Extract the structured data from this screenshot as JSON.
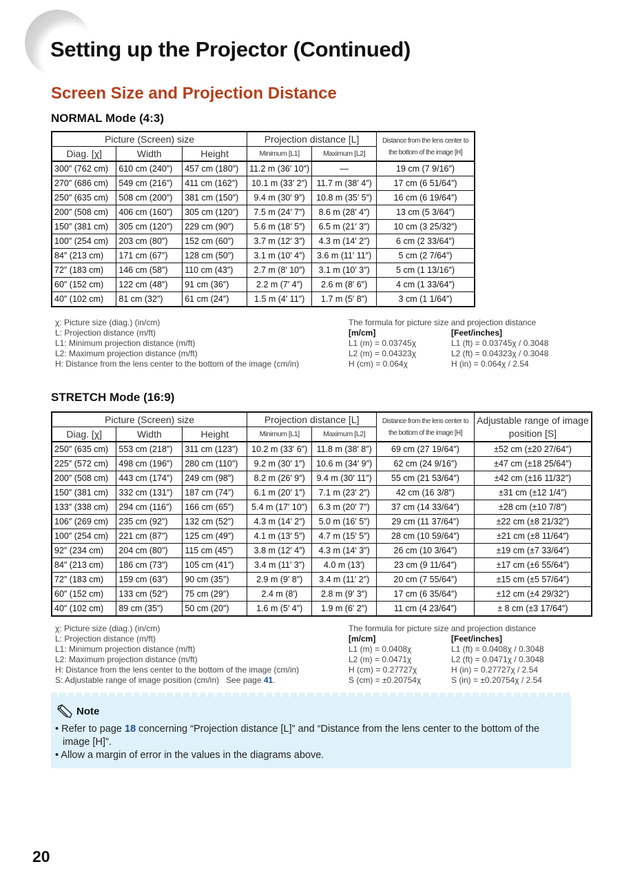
{
  "title": "Setting up the Projector (Continued)",
  "subtitle": "Screen Size and Projection Distance",
  "normal": {
    "heading": "NORMAL Mode (4:3)",
    "headers": {
      "group1": "Picture (Screen) size",
      "group2": "Projection distance [L]",
      "h": "Distance from the lens center to the bottom of the image [H]",
      "diag": "Diag. [χ]",
      "width": "Width",
      "height": "Height",
      "min": "Minimum [L1]",
      "max": "Maximum [L2]"
    },
    "rows": [
      [
        "300″ (762 cm)",
        "610 cm (240″)",
        "457 cm (180″)",
        "11.2 m (36′ 10″)",
        "—",
        "19 cm (7 9/16″)"
      ],
      [
        "270″ (686 cm)",
        "549 cm (216″)",
        "411 cm (162″)",
        "10.1 m (33′ 2″)",
        "11.7 m (38′ 4″)",
        "17 cm (6 51/64″)"
      ],
      [
        "250″ (635 cm)",
        "508 cm (200″)",
        "381 cm (150″)",
        "9.4 m (30′ 9″)",
        "10.8 m (35′ 5″)",
        "16 cm (6 19/64″)"
      ],
      [
        "200″ (508 cm)",
        "406 cm (160″)",
        "305 cm (120″)",
        "7.5 m (24′ 7″)",
        "8.6 m (28′ 4″)",
        "13 cm (5 3/64″)"
      ],
      [
        "150″ (381 cm)",
        "305 cm (120″)",
        "229 cm (90″)",
        "5.6 m (18′ 5″)",
        "6.5 m (21′ 3″)",
        "10 cm (3 25/32″)"
      ],
      [
        "100″ (254 cm)",
        "203 cm (80″)",
        "152 cm (60″)",
        "3.7 m (12′ 3″)",
        "4.3 m (14′ 2″)",
        "6 cm (2 33/64″)"
      ],
      [
        "84″ (213 cm)",
        "171 cm (67″)",
        "128 cm (50″)",
        "3.1 m (10′ 4″)",
        "3.6 m (11′ 11″)",
        "5 cm (2 7/64″)"
      ],
      [
        "72″ (183 cm)",
        "146 cm (58″)",
        "110 cm (43″)",
        "2.7 m (8′ 10″)",
        "3.1 m (10′ 3″)",
        "5 cm (1 13/16″)"
      ],
      [
        "60″ (152 cm)",
        "122 cm (48″)",
        "91 cm (36″)",
        "2.2 m (7′ 4″)",
        "2.6 m (8′ 6″)",
        "4 cm (1 33/64″)"
      ],
      [
        "40″ (102 cm)",
        "81 cm (32″)",
        "61 cm (24″)",
        "1.5 m (4′ 11″)",
        "1.7 m (5′ 8″)",
        "3 cm (1 1/64″)"
      ]
    ],
    "legend": [
      "χ: Picture size (diag.) (in/cm)",
      "L: Projection distance (m/ft)",
      "L1: Minimum projection distance (m/ft)",
      "L2: Maximum projection distance (m/ft)",
      "H: Distance from the lens center to the bottom of the image (cm/in)"
    ],
    "formula": {
      "title": "The formula for picture size and projection distance",
      "metric_label": "[m/cm]",
      "imperial_label": "[Feet/inches]",
      "metric": [
        "L1 (m) = 0.03745χ",
        "L2 (m) = 0.04323χ",
        "H (cm) = 0.064χ"
      ],
      "imperial": [
        "L1 (ft) = 0.03745χ / 0.3048",
        "L2 (ft) = 0.04323χ / 0.3048",
        "H (in) = 0.064χ / 2.54"
      ]
    }
  },
  "stretch": {
    "heading": "STRETCH Mode (16:9)",
    "headers": {
      "group1": "Picture (Screen) size",
      "group2": "Projection distance [L]",
      "h": "Distance from the lens center to the bottom of the image [H]",
      "s": "Adjustable range of image position [S]",
      "diag": "Diag. [χ]",
      "width": "Width",
      "height": "Height",
      "min": "Minimum [L1]",
      "max": "Maximum [L2]"
    },
    "rows": [
      [
        "250″ (635 cm)",
        "553 cm (218″)",
        "311 cm (123″)",
        "10.2 m (33′ 6″)",
        "11.8 m (38′ 8″)",
        "69 cm (27 19/64″)",
        "±52 cm (±20 27/64″)"
      ],
      [
        "225″ (572 cm)",
        "498 cm (196″)",
        "280 cm (110″)",
        "9.2 m (30′ 1″)",
        "10.6 m (34′ 9″)",
        "62 cm (24 9/16″)",
        "±47 cm (±18 25/64″)"
      ],
      [
        "200″ (508 cm)",
        "443 cm (174″)",
        "249 cm (98″)",
        "8.2 m (26′ 9″)",
        "9.4 m (30′ 11″)",
        "55 cm (21 53/64″)",
        "±42 cm (±16 11/32″)"
      ],
      [
        "150″ (381 cm)",
        "332 cm (131″)",
        "187 cm (74″)",
        "6.1 m (20′ 1″)",
        "7.1 m (23′ 2″)",
        "42 cm (16 3/8″)",
        "±31 cm (±12 1/4″)"
      ],
      [
        "133″ (338 cm)",
        "294 cm (116″)",
        "166 cm (65″)",
        "5.4 m (17′ 10″)",
        "6.3 m (20′ 7″)",
        "37 cm (14 33/64″)",
        "±28 cm (±10 7/8″)"
      ],
      [
        "106″ (269 cm)",
        "235 cm (92″)",
        "132 cm (52″)",
        "4.3 m (14′ 2″)",
        "5.0 m (16′ 5″)",
        "29 cm (11 37/64″)",
        "±22 cm (±8 21/32″)"
      ],
      [
        "100″ (254 cm)",
        "221 cm (87″)",
        "125 cm (49″)",
        "4.1 m (13′ 5″)",
        "4.7 m (15′ 5″)",
        "28 cm (10 59/64″)",
        "±21 cm (±8 11/64″)"
      ],
      [
        "92″ (234 cm)",
        "204 cm (80″)",
        "115 cm (45″)",
        "3.8 m (12′ 4″)",
        "4.3 m (14′ 3″)",
        "26 cm (10 3/64″)",
        "±19 cm (±7 33/64″)"
      ],
      [
        "84″ (213 cm)",
        "186 cm (73″)",
        "105 cm (41″)",
        "3.4 m (11′ 3″)",
        "4.0 m (13′)",
        "23 cm (9 11/64″)",
        "±17 cm (±6 55/64″)"
      ],
      [
        "72″ (183 cm)",
        "159 cm (63″)",
        "90 cm (35″)",
        "2.9 m (9′ 8″)",
        "3.4 m (11′ 2″)",
        "20 cm (7 55/64″)",
        "±15 cm (±5 57/64″)"
      ],
      [
        "60″ (152 cm)",
        "133 cm (52″)",
        "75 cm (29″)",
        "2.4 m (8′)",
        "2.8 m (9′ 3″)",
        "17 cm (6 35/64″)",
        "±12 cm (±4 29/32″)"
      ],
      [
        "40″ (102 cm)",
        "89 cm (35″)",
        "50 cm (20″)",
        "1.6 m (5′ 4″)",
        "1.9 m (6′ 2″)",
        "11 cm (4 23/64″)",
        "± 8 cm (±3 17/64″)"
      ]
    ],
    "legend": [
      "χ: Picture size (diag.) (in/cm)",
      "L: Projection distance (m/ft)",
      "L1: Minimum projection distance (m/ft)",
      "L2: Maximum projection distance (m/ft)",
      "H: Distance from the lens center to the bottom of the image (cm/in)"
    ],
    "legend_s": "S: Adjustable range of image position (cm/in)   See page ",
    "legend_s_page": "41",
    "formula": {
      "title": "The formula for picture size and projection distance",
      "metric_label": "[m/cm]",
      "imperial_label": "[Feet/inches]",
      "metric": [
        "L1 (m) = 0.0408χ",
        "L2 (m) = 0.0471χ",
        "H (cm) = 0.27727χ",
        "S (cm) = ±0.20754χ"
      ],
      "imperial": [
        "L1 (ft) = 0.0408χ / 0.3048",
        "L2 (ft) = 0.0471χ / 0.3048",
        "H (in) = 0.27727χ / 2.54",
        "S (in) = ±0.20754χ / 2.54"
      ]
    }
  },
  "note": {
    "label": "Note",
    "icon": "pencil-icon",
    "item1_pre": "• Refer to page ",
    "item1_page": "18",
    "item1_post": " concerning “Projection distance [L]” and “Distance from the lens center to the bottom of the image [H]”.",
    "item2": "• Allow a margin of error in the values in the diagrams above."
  },
  "colors": {
    "subtitle": "#b5401c",
    "link": "#1d4f9c",
    "note_bg": "#dff2fb"
  },
  "page_number": "20"
}
